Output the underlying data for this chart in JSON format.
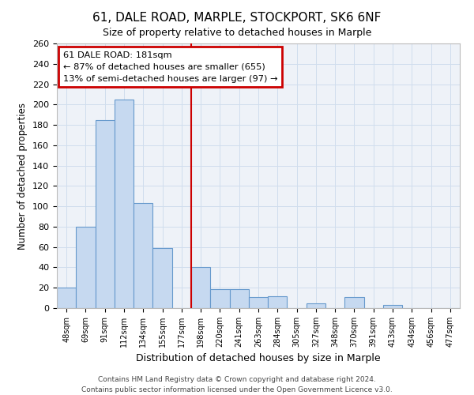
{
  "title": "61, DALE ROAD, MARPLE, STOCKPORT, SK6 6NF",
  "subtitle": "Size of property relative to detached houses in Marple",
  "xlabel": "Distribution of detached houses by size in Marple",
  "ylabel": "Number of detached properties",
  "bin_labels": [
    "48sqm",
    "69sqm",
    "91sqm",
    "112sqm",
    "134sqm",
    "155sqm",
    "177sqm",
    "198sqm",
    "220sqm",
    "241sqm",
    "263sqm",
    "284sqm",
    "305sqm",
    "327sqm",
    "348sqm",
    "370sqm",
    "391sqm",
    "413sqm",
    "434sqm",
    "456sqm",
    "477sqm"
  ],
  "bar_values": [
    20,
    80,
    185,
    205,
    103,
    59,
    0,
    40,
    19,
    19,
    11,
    12,
    0,
    5,
    0,
    11,
    0,
    3,
    0,
    0,
    0
  ],
  "bar_color": "#c6d9f0",
  "bar_edge_color": "#6699cc",
  "grid_color": "#d0dded",
  "background_color": "#eef2f8",
  "vline_color": "#cc0000",
  "annotation_title": "61 DALE ROAD: 181sqm",
  "annotation_line1": "← 87% of detached houses are smaller (655)",
  "annotation_line2": "13% of semi-detached houses are larger (97) →",
  "annotation_box_color": "#cc0000",
  "ylim": [
    0,
    260
  ],
  "yticks": [
    0,
    20,
    40,
    60,
    80,
    100,
    120,
    140,
    160,
    180,
    200,
    220,
    240,
    260
  ],
  "footnote1": "Contains HM Land Registry data © Crown copyright and database right 2024.",
  "footnote2": "Contains public sector information licensed under the Open Government Licence v3.0."
}
